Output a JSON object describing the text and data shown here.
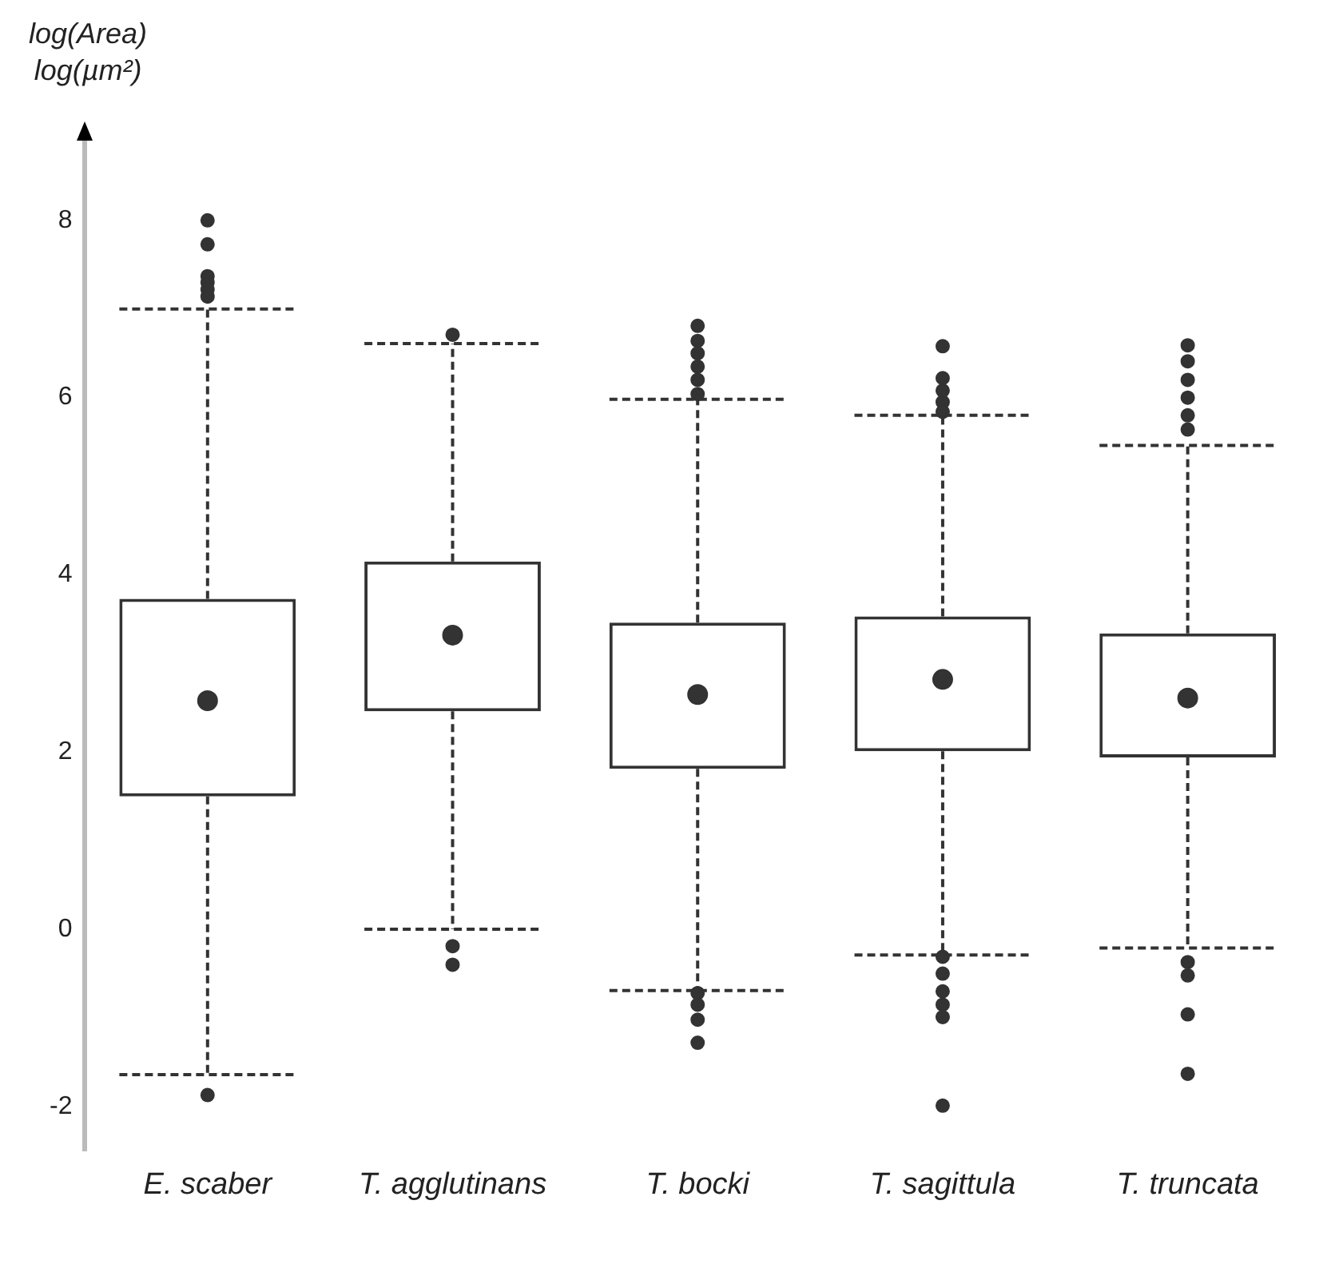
{
  "chart_data": {
    "type": "box",
    "ylabel": "log(Area)\nlog(µm²)",
    "categories": [
      "E. scaber",
      "T. agglutinans",
      "T. bocki",
      "T. sagittula",
      "T. truncata"
    ],
    "boxes": [
      {
        "low": -1.64,
        "q1": 1.5,
        "median": 2.58,
        "q3": 3.73,
        "high": 7.0,
        "outliers": [
          8.0,
          7.73,
          7.37,
          7.3,
          7.22,
          7.14,
          -1.87
        ]
      },
      {
        "low": 0.0,
        "q1": 2.46,
        "median": 3.32,
        "q3": 4.15,
        "high": 6.61,
        "outliers": [
          6.71,
          -0.19,
          -0.4
        ]
      },
      {
        "low": -0.69,
        "q1": 1.81,
        "median": 2.65,
        "q3": 3.46,
        "high": 5.98,
        "outliers": [
          6.81,
          6.64,
          6.5,
          6.35,
          6.2,
          6.04,
          -0.72,
          -0.85,
          -1.02,
          -1.28
        ]
      },
      {
        "low": -0.29,
        "q1": 2.01,
        "median": 2.82,
        "q3": 3.53,
        "high": 5.8,
        "outliers": [
          6.58,
          6.22,
          6.08,
          5.95,
          5.84,
          -0.31,
          -0.5,
          -0.7,
          -0.85,
          -0.99,
          -1.99
        ]
      },
      {
        "low": -0.21,
        "q1": 1.94,
        "median": 2.61,
        "q3": 3.34,
        "high": 5.46,
        "outliers": [
          6.59,
          6.41,
          6.2,
          6.0,
          5.8,
          5.64,
          -0.37,
          -0.52,
          -0.96,
          -1.63
        ]
      }
    ],
    "color": "#333333",
    "ylim": [
      -2.5,
      8.9
    ],
    "yticks": [
      -2,
      0,
      2,
      4,
      6,
      8
    ],
    "grid": false,
    "legend": false,
    "marker": "circle"
  }
}
